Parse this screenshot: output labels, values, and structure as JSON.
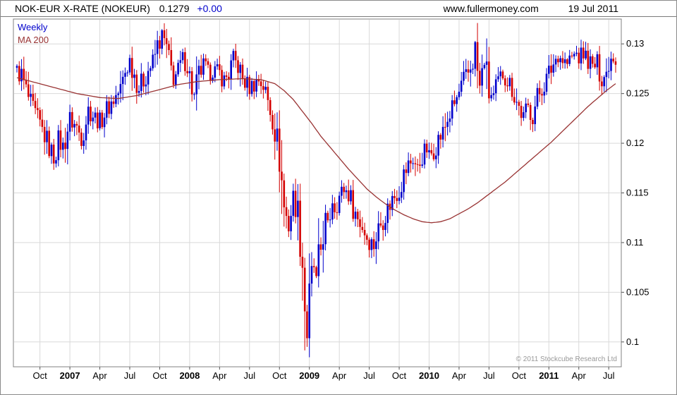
{
  "header": {
    "title": "NOK-EUR X-RATE (NOKEUR)",
    "price": "0.1279",
    "change": "+0.00",
    "website": "www.fullermoney.com",
    "date": "19 Jul 2011"
  },
  "legend": {
    "series": "Weekly",
    "ma": "MA 200"
  },
  "footer_note": "© 2011 Stockcube Research Ltd",
  "colors": {
    "up": "#0000cc",
    "down": "#d40000",
    "ma": "#993333",
    "grid": "#d9d9d9",
    "axis": "#808080",
    "tick": "#555555",
    "text": "#000000",
    "note": "#999999"
  },
  "chart_data": {
    "type": "candlestick",
    "instrument": "NOK-EUR X-RATE (NOKEUR)",
    "frequency": "Weekly",
    "overlay": "MA 200",
    "last_close": 0.1279,
    "change": "+0.00",
    "ylim": [
      0.0975,
      0.1325
    ],
    "weeks": 261,
    "y_ticks": [
      {
        "value": 0.13,
        "label": "0.13"
      },
      {
        "value": 0.125,
        "label": "0.125"
      },
      {
        "value": 0.12,
        "label": "0.12"
      },
      {
        "value": 0.115,
        "label": "0.115"
      },
      {
        "value": 0.11,
        "label": "0.11"
      },
      {
        "value": 0.105,
        "label": "0.105"
      },
      {
        "value": 0.1,
        "label": "0.1"
      }
    ],
    "x_ticks": [
      {
        "label": "Oct",
        "week": 10
      },
      {
        "label": "2007",
        "week": 23,
        "year": true
      },
      {
        "label": "Apr",
        "week": 36
      },
      {
        "label": "Jul",
        "week": 49
      },
      {
        "label": "Oct",
        "week": 62
      },
      {
        "label": "2008",
        "week": 75,
        "year": true
      },
      {
        "label": "Apr",
        "week": 88
      },
      {
        "label": "Jul",
        "week": 101
      },
      {
        "label": "Oct",
        "week": 114
      },
      {
        "label": "2009",
        "week": 127,
        "year": true
      },
      {
        "label": "Apr",
        "week": 140
      },
      {
        "label": "Jul",
        "week": 153
      },
      {
        "label": "Oct",
        "week": 166
      },
      {
        "label": "2010",
        "week": 179,
        "year": true
      },
      {
        "label": "Apr",
        "week": 192
      },
      {
        "label": "Jul",
        "week": 205
      },
      {
        "label": "Oct",
        "week": 218
      },
      {
        "label": "2011",
        "week": 231,
        "year": true
      },
      {
        "label": "Apr",
        "week": 244
      },
      {
        "label": "Jul",
        "week": 257
      }
    ],
    "close_keypoints": [
      [
        0,
        0.1272
      ],
      [
        2,
        0.1268
      ],
      [
        4,
        0.1252
      ],
      [
        6,
        0.1238
      ],
      [
        8,
        0.1228
      ],
      [
        10,
        0.1218
      ],
      [
        12,
        0.1208
      ],
      [
        14,
        0.1196
      ],
      [
        16,
        0.1186
      ],
      [
        18,
        0.1204
      ],
      [
        20,
        0.1196
      ],
      [
        23,
        0.1224
      ],
      [
        26,
        0.1216
      ],
      [
        28,
        0.1206
      ],
      [
        31,
        0.1234
      ],
      [
        34,
        0.1226
      ],
      [
        36,
        0.1222
      ],
      [
        39,
        0.1234
      ],
      [
        42,
        0.1244
      ],
      [
        45,
        0.1254
      ],
      [
        47,
        0.1272
      ],
      [
        49,
        0.1284
      ],
      [
        51,
        0.127
      ],
      [
        53,
        0.1256
      ],
      [
        55,
        0.1264
      ],
      [
        57,
        0.1274
      ],
      [
        59,
        0.128
      ],
      [
        61,
        0.1298
      ],
      [
        63,
        0.1308
      ],
      [
        64,
        0.1302
      ],
      [
        65,
        0.1294
      ],
      [
        66,
        0.1282
      ],
      [
        68,
        0.1266
      ],
      [
        70,
        0.1272
      ],
      [
        72,
        0.1284
      ],
      [
        74,
        0.128
      ],
      [
        75,
        0.1266
      ],
      [
        77,
        0.1246
      ],
      [
        79,
        0.1268
      ],
      [
        81,
        0.1278
      ],
      [
        83,
        0.127
      ],
      [
        85,
        0.1274
      ],
      [
        88,
        0.127
      ],
      [
        90,
        0.1264
      ],
      [
        92,
        0.127
      ],
      [
        94,
        0.1284
      ],
      [
        96,
        0.1278
      ],
      [
        98,
        0.1264
      ],
      [
        101,
        0.1256
      ],
      [
        103,
        0.126
      ],
      [
        105,
        0.1264
      ],
      [
        107,
        0.1258
      ],
      [
        109,
        0.1242
      ],
      [
        111,
        0.1226
      ],
      [
        113,
        0.1202
      ],
      [
        114,
        0.1186
      ],
      [
        116,
        0.1136
      ],
      [
        118,
        0.1116
      ],
      [
        120,
        0.1146
      ],
      [
        122,
        0.113
      ],
      [
        124,
        0.1082
      ],
      [
        125,
        0.1038
      ],
      [
        126,
        0.1006
      ],
      [
        127,
        0.104
      ],
      [
        128,
        0.1064
      ],
      [
        129,
        0.1076
      ],
      [
        130,
        0.106
      ],
      [
        131,
        0.108
      ],
      [
        132,
        0.1094
      ],
      [
        133,
        0.111
      ],
      [
        134,
        0.1124
      ],
      [
        135,
        0.1114
      ],
      [
        136,
        0.113
      ],
      [
        137,
        0.1144
      ],
      [
        138,
        0.1136
      ],
      [
        140,
        0.1146
      ],
      [
        142,
        0.1154
      ],
      [
        144,
        0.115
      ],
      [
        146,
        0.1136
      ],
      [
        148,
        0.1124
      ],
      [
        150,
        0.1116
      ],
      [
        152,
        0.1106
      ],
      [
        153,
        0.1102
      ],
      [
        155,
        0.1098
      ],
      [
        157,
        0.1114
      ],
      [
        159,
        0.1124
      ],
      [
        161,
        0.1134
      ],
      [
        163,
        0.1144
      ],
      [
        165,
        0.115
      ],
      [
        166,
        0.1154
      ],
      [
        168,
        0.1168
      ],
      [
        170,
        0.1178
      ],
      [
        172,
        0.1184
      ],
      [
        174,
        0.1174
      ],
      [
        176,
        0.1188
      ],
      [
        178,
        0.1194
      ],
      [
        179,
        0.1186
      ],
      [
        181,
        0.1194
      ],
      [
        183,
        0.1204
      ],
      [
        185,
        0.121
      ],
      [
        187,
        0.1224
      ],
      [
        189,
        0.1234
      ],
      [
        191,
        0.1244
      ],
      [
        192,
        0.125
      ],
      [
        194,
        0.1262
      ],
      [
        196,
        0.127
      ],
      [
        198,
        0.1284
      ],
      [
        199,
        0.1296
      ],
      [
        200,
        0.1272
      ],
      [
        201,
        0.1256
      ],
      [
        202,
        0.1268
      ],
      [
        203,
        0.1284
      ],
      [
        204,
        0.1266
      ],
      [
        205,
        0.125
      ],
      [
        207,
        0.1246
      ],
      [
        209,
        0.126
      ],
      [
        211,
        0.127
      ],
      [
        213,
        0.1264
      ],
      [
        215,
        0.1256
      ],
      [
        217,
        0.1242
      ],
      [
        218,
        0.1236
      ],
      [
        220,
        0.1226
      ],
      [
        222,
        0.1236
      ],
      [
        224,
        0.1228
      ],
      [
        226,
        0.1246
      ],
      [
        228,
        0.1256
      ],
      [
        230,
        0.1264
      ],
      [
        231,
        0.127
      ],
      [
        233,
        0.128
      ],
      [
        235,
        0.129
      ],
      [
        237,
        0.1284
      ],
      [
        239,
        0.128
      ],
      [
        241,
        0.1286
      ],
      [
        243,
        0.129
      ],
      [
        244,
        0.1286
      ],
      [
        246,
        0.129
      ],
      [
        248,
        0.1284
      ],
      [
        250,
        0.1276
      ],
      [
        252,
        0.128
      ],
      [
        254,
        0.1266
      ],
      [
        256,
        0.127
      ],
      [
        257,
        0.1284
      ],
      [
        259,
        0.129
      ],
      [
        260,
        0.1279
      ]
    ],
    "ma_keypoints": [
      [
        0,
        0.1266
      ],
      [
        13,
        0.1258
      ],
      [
        26,
        0.125
      ],
      [
        36,
        0.1246
      ],
      [
        44,
        0.1245
      ],
      [
        52,
        0.1248
      ],
      [
        62,
        0.1254
      ],
      [
        70,
        0.1259
      ],
      [
        78,
        0.1262
      ],
      [
        88,
        0.1264
      ],
      [
        98,
        0.1265
      ],
      [
        106,
        0.1264
      ],
      [
        112,
        0.126
      ],
      [
        116,
        0.1253
      ],
      [
        120,
        0.1244
      ],
      [
        124,
        0.1232
      ],
      [
        128,
        0.122
      ],
      [
        132,
        0.1207
      ],
      [
        136,
        0.1196
      ],
      [
        140,
        0.1185
      ],
      [
        144,
        0.1174
      ],
      [
        148,
        0.1164
      ],
      [
        152,
        0.1154
      ],
      [
        156,
        0.1146
      ],
      [
        160,
        0.1139
      ],
      [
        164,
        0.1133
      ],
      [
        168,
        0.1128
      ],
      [
        172,
        0.1124
      ],
      [
        176,
        0.1121
      ],
      [
        180,
        0.112
      ],
      [
        184,
        0.1121
      ],
      [
        188,
        0.1124
      ],
      [
        192,
        0.1129
      ],
      [
        196,
        0.1134
      ],
      [
        200,
        0.114
      ],
      [
        204,
        0.1147
      ],
      [
        208,
        0.1154
      ],
      [
        212,
        0.1161
      ],
      [
        216,
        0.1169
      ],
      [
        220,
        0.1177
      ],
      [
        224,
        0.1185
      ],
      [
        228,
        0.1193
      ],
      [
        232,
        0.1201
      ],
      [
        236,
        0.121
      ],
      [
        240,
        0.1219
      ],
      [
        244,
        0.1228
      ],
      [
        248,
        0.1237
      ],
      [
        252,
        0.1245
      ],
      [
        256,
        0.1253
      ],
      [
        260,
        0.126
      ]
    ],
    "wick_overrides": [
      [
        63,
        "high",
        0.1315
      ],
      [
        126,
        "low",
        0.0995
      ],
      [
        199,
        "high",
        0.1303
      ]
    ],
    "render": {
      "jitter": 0.00085,
      "wick_base": 0.0005
    }
  }
}
